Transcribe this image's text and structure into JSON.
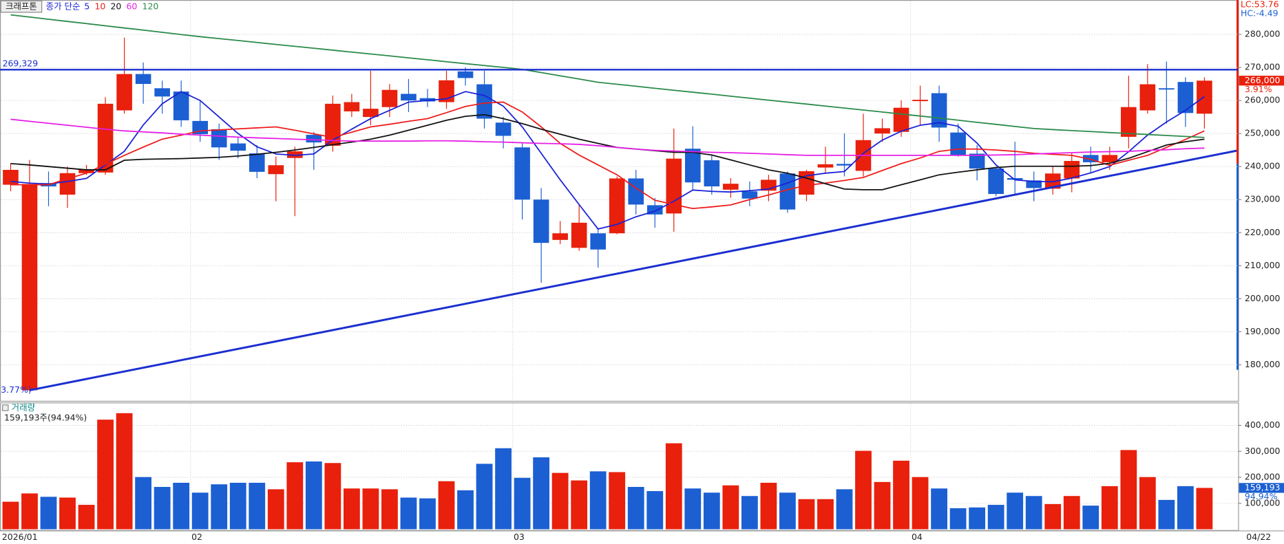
{
  "chart_data": [
    {
      "type": "candlestick",
      "title": "크래프톤",
      "legend_prefix": "종가 단순",
      "up_color": "#e8200c",
      "down_color": "#1b5fd2",
      "open": [
        234500,
        172300,
        235000,
        231500,
        238000,
        238200,
        257000,
        268000,
        263700,
        262700,
        253800,
        251300,
        247000,
        244000,
        237700,
        242600,
        249600,
        246300,
        256700,
        255000,
        258000,
        262000,
        260700,
        259500,
        268800,
        264900,
        253300,
        245800,
        230000,
        217800,
        215400,
        219800,
        219800,
        236400,
        228300,
        225800,
        245400,
        241900,
        233000,
        232500,
        232700,
        237900,
        231500,
        239700,
        240800,
        238700,
        250000,
        250500,
        259800,
        262200,
        250300,
        243900,
        239400,
        236500,
        235800,
        233300,
        236400,
        243500,
        241300,
        249000,
        257000,
        263700,
        265600,
        256000
      ],
      "high": [
        241000,
        242000,
        238500,
        240000,
        240500,
        261000,
        279000,
        271500,
        266000,
        266000,
        260000,
        253000,
        249000,
        246500,
        243000,
        246000,
        250500,
        261500,
        262000,
        269000,
        265000,
        266500,
        263500,
        269000,
        270000,
        269000,
        255000,
        247000,
        233500,
        223500,
        228500,
        221500,
        237000,
        239000,
        230500,
        251500,
        252200,
        243500,
        236500,
        235500,
        237500,
        238500,
        239000,
        246000,
        250000,
        256000,
        254500,
        260000,
        264500,
        264500,
        253000,
        246500,
        240000,
        247500,
        238500,
        240000,
        244000,
        246000,
        246000,
        267500,
        271000,
        271800,
        267000,
        267000
      ],
      "low": [
        232500,
        172000,
        228000,
        227500,
        237500,
        237500,
        256000,
        259000,
        256000,
        252000,
        247500,
        242000,
        242500,
        236500,
        229500,
        225000,
        239000,
        244500,
        255000,
        252500,
        255000,
        256500,
        258000,
        257500,
        264500,
        251500,
        245500,
        224000,
        204800,
        216500,
        214500,
        209400,
        219500,
        225500,
        221500,
        220300,
        233000,
        231500,
        230500,
        228000,
        229500,
        226000,
        229500,
        238000,
        237000,
        237000,
        247500,
        249000,
        252500,
        247500,
        243000,
        235800,
        231000,
        231500,
        229500,
        231500,
        232200,
        238000,
        239000,
        245500,
        256000,
        253000,
        252000,
        251500
      ],
      "close": [
        239000,
        234700,
        234000,
        238000,
        239000,
        259000,
        268000,
        265000,
        261200,
        254000,
        249800,
        245800,
        244800,
        238400,
        240400,
        244600,
        247300,
        259000,
        259500,
        257500,
        263200,
        260000,
        259700,
        266100,
        266800,
        254500,
        249300,
        230000,
        216900,
        219800,
        223000,
        214900,
        236400,
        228500,
        225500,
        242400,
        235200,
        234000,
        234800,
        230300,
        236000,
        227000,
        238600,
        240700,
        240300,
        248000,
        251600,
        257800,
        260200,
        251800,
        243400,
        239400,
        231700,
        236000,
        233500,
        237900,
        241700,
        241300,
        243500,
        258000,
        264900,
        263300,
        256200,
        266000
      ],
      "series": [
        {
          "name": "5",
          "color": "#1a22d6",
          "values": [
            235500,
            235000,
            234700,
            235500,
            236400,
            240500,
            244600,
            252600,
            259000,
            262700,
            260000,
            255000,
            250000,
            246000,
            243800,
            243400,
            243800,
            248000,
            251300,
            254500,
            257000,
            259500,
            260000,
            260500,
            262700,
            261500,
            258300,
            252000,
            244000,
            236000,
            228500,
            221100,
            222500,
            224800,
            226500,
            229500,
            232900,
            232500,
            232300,
            232700,
            233200,
            235000,
            237200,
            238000,
            238500,
            244000,
            248000,
            250700,
            252500,
            253300,
            252200,
            247100,
            240500,
            236000,
            235500,
            235400,
            236500,
            238100,
            240000,
            244500,
            249500,
            253500,
            257000,
            261200
          ]
        },
        {
          "name": "10",
          "color": "#ee1c1c",
          "values": [
            234500,
            234500,
            234500,
            236300,
            238000,
            240700,
            243400,
            245900,
            248300,
            249500,
            250800,
            251100,
            251400,
            251700,
            252000,
            251000,
            249900,
            248800,
            250400,
            252000,
            252800,
            253700,
            254500,
            256300,
            258200,
            259200,
            259500,
            256500,
            252000,
            247000,
            243500,
            240500,
            237500,
            233500,
            229800,
            228500,
            227300,
            227800,
            228400,
            230000,
            231400,
            233000,
            234300,
            235000,
            235800,
            236700,
            238800,
            240900,
            242600,
            244600,
            245300,
            245300,
            245000,
            244600,
            244000,
            243700,
            243400,
            242200,
            240400,
            241900,
            243400,
            245800,
            248200,
            250800
          ]
        },
        {
          "name": "20",
          "color": "#111111",
          "values": [
            240900,
            240500,
            240000,
            239500,
            239000,
            239000,
            241900,
            242200,
            242300,
            242400,
            242600,
            242800,
            243200,
            243700,
            244300,
            245000,
            245800,
            246600,
            247400,
            248300,
            249500,
            251000,
            252500,
            254000,
            255200,
            255700,
            254500,
            253000,
            251300,
            249800,
            248300,
            247000,
            245800,
            245300,
            244800,
            244300,
            244300,
            243500,
            242000,
            240500,
            239000,
            238000,
            236500,
            234800,
            233200,
            233000,
            233000,
            234500,
            236000,
            237500,
            238300,
            239000,
            239700,
            240100,
            240100,
            240100,
            240100,
            240300,
            241000,
            242500,
            244500,
            246500,
            247500,
            248300
          ]
        },
        {
          "name": "60",
          "color": "#e61ee6",
          "values": [
            254300,
            253700,
            253100,
            252500,
            251900,
            251300,
            250800,
            250500,
            250200,
            249800,
            249500,
            249200,
            248900,
            248700,
            248500,
            248300,
            248100,
            247900,
            247700,
            247700,
            247700,
            247700,
            247800,
            247800,
            247700,
            247500,
            247400,
            247200,
            247000,
            246900,
            246700,
            246300,
            245800,
            245300,
            244900,
            244700,
            244500,
            244300,
            244200,
            244000,
            243800,
            243600,
            243400,
            243400,
            243400,
            243400,
            243400,
            243400,
            243400,
            243400,
            243400,
            243400,
            243500,
            243600,
            243800,
            244000,
            244200,
            244400,
            244500,
            244600,
            244900,
            245100,
            245400,
            245600
          ]
        },
        {
          "name": "120",
          "color": "#2a8a4a",
          "values": [
            285900,
            285240,
            284580,
            283920,
            283260,
            282600,
            281940,
            281280,
            280620,
            279960,
            279300,
            278720,
            278140,
            277550,
            276970,
            276390,
            275810,
            275230,
            274640,
            274060,
            273480,
            272900,
            272320,
            271730,
            271150,
            270570,
            269990,
            269400,
            268430,
            267450,
            266480,
            265500,
            264900,
            264300,
            263700,
            263100,
            262500,
            261900,
            261300,
            260700,
            260100,
            259500,
            258900,
            258300,
            257700,
            257100,
            256500,
            255900,
            255300,
            254670,
            254030,
            253400,
            252770,
            252130,
            251500,
            251200,
            250900,
            250600,
            250300,
            250000,
            249700,
            249400,
            249100,
            248800
          ]
        }
      ],
      "hline": {
        "value": 269329,
        "label": "269,329",
        "color": "#1a2fd0"
      },
      "trendline": {
        "x": [
          1,
          64.7
        ],
        "y": [
          172300,
          244800
        ],
        "label": "3.77%)",
        "color": "#1a2fd0"
      },
      "last_label": "266,000",
      "last_change": "3.91%",
      "lc_label": "LC:53.76",
      "hc_label": "HC:-4.49",
      "ylim": [
        169100,
        290400
      ],
      "yticks": [
        {
          "value": 180000,
          "label": "180,000"
        },
        {
          "value": 190000,
          "label": "190,000"
        },
        {
          "value": 200000,
          "label": "200,000"
        },
        {
          "value": 210000,
          "label": "210,000"
        },
        {
          "value": 220000,
          "label": "220,000"
        },
        {
          "value": 230000,
          "label": "230,000"
        },
        {
          "value": 240000,
          "label": "240,000"
        },
        {
          "value": 250000,
          "label": "250,000"
        },
        {
          "value": 260000,
          "label": "260,000"
        },
        {
          "value": 270000,
          "label": "270,000"
        },
        {
          "value": 280000,
          "label": "280,000"
        }
      ],
      "grid": true
    },
    {
      "type": "bar",
      "title": "거래량",
      "subtitle": "159,193주(94.94%)",
      "categories": [
        "2026/01",
        null,
        null,
        null,
        null,
        null,
        null,
        null,
        null,
        null,
        "02",
        null,
        null,
        null,
        null,
        null,
        null,
        null,
        null,
        null,
        null,
        null,
        null,
        null,
        null,
        null,
        null,
        "03",
        null,
        null,
        null,
        null,
        null,
        null,
        null,
        null,
        null,
        null,
        null,
        null,
        null,
        null,
        null,
        null,
        null,
        null,
        null,
        null,
        "04",
        null,
        null,
        null,
        null,
        null,
        null,
        null,
        null,
        null,
        null,
        null,
        null,
        null,
        null,
        null
      ],
      "values": [
        106000,
        138000,
        125000,
        122000,
        94000,
        422000,
        447000,
        201000,
        163000,
        179000,
        141000,
        173000,
        179000,
        179000,
        154000,
        258000,
        261000,
        255000,
        157000,
        157000,
        154000,
        122000,
        119000,
        185000,
        150000,
        252000,
        312000,
        198000,
        277000,
        217000,
        188000,
        223000,
        220000,
        163000,
        147000,
        331000,
        157000,
        141000,
        169000,
        128000,
        179000,
        141000,
        116000,
        116000,
        154000,
        302000,
        182000,
        264000,
        201000,
        157000,
        81000,
        84000,
        94000,
        141000,
        128000,
        97000,
        128000,
        91000,
        166000,
        305000,
        201000,
        113000,
        166000,
        159193
      ],
      "last_label": "159,193",
      "last_change": "94.94%",
      "date_label": "04/22",
      "ylim": [
        0,
        485000
      ],
      "yticks": [
        {
          "value": 100000,
          "label": "100,000"
        },
        {
          "value": 200000,
          "label": "200,000"
        },
        {
          "value": 300000,
          "label": "300,000"
        },
        {
          "value": 400000,
          "label": "400,000"
        }
      ],
      "grid": true
    }
  ]
}
